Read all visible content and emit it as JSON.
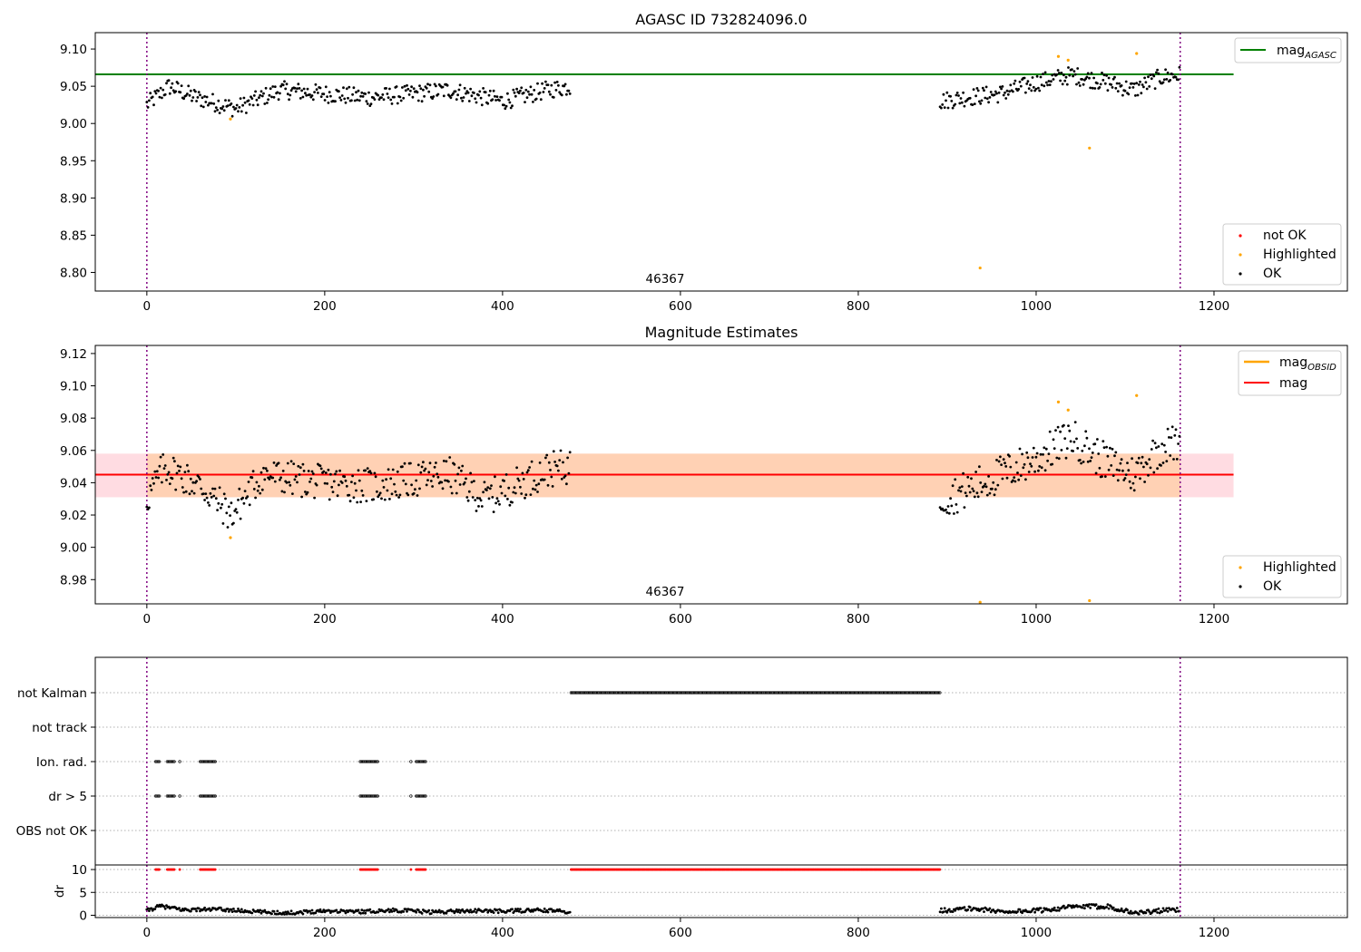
{
  "chart_data": [
    {
      "type": "scatter",
      "title": "AGASC ID 732824096.0",
      "annotation": "46367",
      "xlim": [
        -58,
        1350
      ],
      "ylim": [
        8.775,
        9.122
      ],
      "xticks": [
        0,
        200,
        400,
        600,
        800,
        1000,
        1200
      ],
      "xtick_labels": [
        "0",
        "200",
        "400",
        "600",
        "800",
        "1000",
        "1200"
      ],
      "yticks": [
        8.8,
        8.85,
        8.9,
        8.95,
        9.0,
        9.05,
        9.1
      ],
      "ytick_labels": [
        "8.80",
        "8.85",
        "8.90",
        "8.95",
        "9.00",
        "9.05",
        "9.10"
      ],
      "vertical_lines": [
        0,
        1162
      ],
      "reference_line": {
        "name": "mag",
        "subscript": "AGASC",
        "y": 9.066,
        "x_range": [
          -58,
          1222
        ],
        "color": "#008000"
      },
      "legend_upper": [
        {
          "name": "mag",
          "subscript": "AGASC",
          "color": "#008000",
          "marker": "line"
        }
      ],
      "legend_lower": [
        {
          "name": "not OK",
          "color": "#ff0000",
          "marker": "dot"
        },
        {
          "name": "Highlighted",
          "color": "#ffa500",
          "marker": "dot"
        },
        {
          "name": "OK",
          "color": "#000000",
          "marker": "dot"
        }
      ],
      "series": [
        {
          "name": "OK",
          "color": "#000000",
          "segments": [
            {
              "x_start": 0,
              "x_end": 477,
              "baseline": [
                [
                  0,
                  9.025
                ],
                [
                  25,
                  9.05
                ],
                [
                  55,
                  9.035
                ],
                [
                  100,
                  9.02
                ],
                [
                  150,
                  9.045
                ],
                [
                  200,
                  9.04
                ],
                [
                  250,
                  9.035
                ],
                [
                  300,
                  9.04
                ],
                [
                  340,
                  9.045
                ],
                [
                  400,
                  9.03
                ],
                [
                  450,
                  9.045
                ],
                [
                  477,
                  9.05
                ]
              ],
              "spread": 0.012
            },
            {
              "x_start": 892,
              "x_end": 1162,
              "baseline": [
                [
                  892,
                  9.03
                ],
                [
                  920,
                  9.035
                ],
                [
                  960,
                  9.04
                ],
                [
                  1000,
                  9.055
                ],
                [
                  1040,
                  9.065
                ],
                [
                  1080,
                  9.055
                ],
                [
                  1110,
                  9.045
                ],
                [
                  1140,
                  9.062
                ],
                [
                  1162,
                  9.065
                ]
              ],
              "spread": 0.012
            }
          ]
        },
        {
          "name": "Highlighted",
          "color": "#ffa500",
          "points": [
            [
              94,
              9.006
            ],
            [
              1025,
              9.09
            ],
            [
              1036,
              9.085
            ],
            [
              1060,
              8.967
            ],
            [
              1113,
              9.094
            ],
            [
              937,
              8.806
            ]
          ]
        }
      ]
    },
    {
      "type": "scatter",
      "title": "Magnitude Estimates",
      "annotation": "46367",
      "xlim": [
        -58,
        1350
      ],
      "ylim": [
        8.965,
        9.125
      ],
      "xticks": [
        0,
        200,
        400,
        600,
        800,
        1000,
        1200
      ],
      "xtick_labels": [
        "0",
        "200",
        "400",
        "600",
        "800",
        "1000",
        "1200"
      ],
      "yticks": [
        8.98,
        9.0,
        9.02,
        9.04,
        9.06,
        9.08,
        9.1,
        9.12
      ],
      "ytick_labels": [
        "8.98",
        "9.00",
        "9.02",
        "9.04",
        "9.06",
        "9.08",
        "9.10",
        "9.12"
      ],
      "vertical_lines": [
        0,
        1162
      ],
      "mag_line": {
        "name": "mag",
        "y": 9.045,
        "band": [
          9.031,
          9.058
        ],
        "x_range": [
          -58,
          1222
        ],
        "color": "#ff0000"
      },
      "obsid_band": {
        "name": "mag",
        "subscript": "OBSID",
        "y": 9.045,
        "band": [
          9.031,
          9.058
        ],
        "x_range": [
          0,
          1162
        ],
        "color": "#ffa500"
      },
      "legend_upper": [
        {
          "name": "mag",
          "subscript": "OBSID",
          "color": "#ffa500",
          "marker": "line"
        },
        {
          "name": "mag",
          "subscript": "",
          "color": "#ff0000",
          "marker": "line"
        }
      ],
      "legend_lower": [
        {
          "name": "Highlighted",
          "color": "#ffa500",
          "marker": "dot"
        },
        {
          "name": "OK",
          "color": "#000000",
          "marker": "dot"
        }
      ],
      "series": [
        {
          "name": "OK",
          "color": "#000000",
          "segments": [
            {
              "x_start": 0,
              "x_end": 477,
              "baseline": [
                [
                  0,
                  9.03
                ],
                [
                  20,
                  9.05
                ],
                [
                  60,
                  9.038
                ],
                [
                  95,
                  9.02
                ],
                [
                  130,
                  9.045
                ],
                [
                  200,
                  9.04
                ],
                [
                  260,
                  9.038
                ],
                [
                  300,
                  9.042
                ],
                [
                  340,
                  9.045
                ],
                [
                  380,
                  9.03
                ],
                [
                  420,
                  9.04
                ],
                [
                  450,
                  9.048
                ],
                [
                  477,
                  9.05
                ]
              ],
              "spread": 0.011
            },
            {
              "x_start": 892,
              "x_end": 1162,
              "baseline": [
                [
                  892,
                  9.03
                ],
                [
                  920,
                  9.035
                ],
                [
                  960,
                  9.045
                ],
                [
                  1000,
                  9.055
                ],
                [
                  1040,
                  9.068
                ],
                [
                  1080,
                  9.052
                ],
                [
                  1110,
                  9.045
                ],
                [
                  1140,
                  9.062
                ],
                [
                  1162,
                  9.065
                ]
              ],
              "spread": 0.012
            }
          ]
        },
        {
          "name": "Highlighted",
          "color": "#ffa500",
          "points": [
            [
              94,
              9.006
            ],
            [
              1025,
              9.09
            ],
            [
              1036,
              9.085
            ],
            [
              1113,
              9.094
            ],
            [
              937,
              8.966
            ],
            [
              1060,
              8.967
            ]
          ]
        }
      ]
    },
    {
      "type": "scatter",
      "title": "",
      "xlim": [
        -58,
        1350
      ],
      "category_axis": {
        "labels": [
          "not Kalman",
          "not track",
          "Ion. rad.",
          "dr > 5",
          "OBS not OK"
        ],
        "flag_rows": [
          {
            "label": "not Kalman",
            "ranges": [
              [
                477,
                892
              ]
            ]
          },
          {
            "label": "not track",
            "ranges": []
          },
          {
            "label": "Ion. rad.",
            "ranges": [
              [
                10,
                15
              ],
              [
                23,
                32
              ],
              [
                37,
                38
              ],
              [
                60,
                78
              ],
              [
                240,
                260
              ],
              [
                297,
                298
              ],
              [
                303,
                314
              ]
            ]
          },
          {
            "label": "dr > 5",
            "ranges": [
              [
                10,
                15
              ],
              [
                23,
                32
              ],
              [
                37,
                38
              ],
              [
                60,
                78
              ],
              [
                240,
                260
              ],
              [
                297,
                298
              ],
              [
                303,
                314
              ]
            ]
          },
          {
            "label": "OBS not OK",
            "ranges": []
          }
        ]
      },
      "dr_axis": {
        "ylabel": "dr",
        "ylim": [
          -0.5,
          11
        ],
        "yticks": [
          0,
          5,
          10
        ],
        "ytick_labels": [
          "0",
          "5",
          "10"
        ],
        "clipped_value": 10,
        "clipped_ranges": [
          [
            10,
            15
          ],
          [
            23,
            32
          ],
          [
            37,
            38
          ],
          [
            60,
            78
          ],
          [
            240,
            260
          ],
          [
            297,
            298
          ],
          [
            303,
            314
          ],
          [
            477,
            892
          ]
        ],
        "segments": [
          {
            "x_start": 0,
            "x_end": 477,
            "baseline": [
              [
                0,
                1.0
              ],
              [
                15,
                2.0
              ],
              [
                40,
                1.2
              ],
              [
                80,
                1.3
              ],
              [
                120,
                0.8
              ],
              [
                160,
                0.5
              ],
              [
                200,
                1.0
              ],
              [
                240,
                0.8
              ],
              [
                280,
                1.1
              ],
              [
                320,
                0.7
              ],
              [
                360,
                1.0
              ],
              [
                400,
                0.9
              ],
              [
                440,
                1.1
              ],
              [
                477,
                0.8
              ]
            ],
            "spread": 0.4
          },
          {
            "x_start": 892,
            "x_end": 1162,
            "baseline": [
              [
                892,
                1.0
              ],
              [
                930,
                1.5
              ],
              [
                960,
                0.8
              ],
              [
                1000,
                1.0
              ],
              [
                1040,
                1.8
              ],
              [
                1080,
                2.0
              ],
              [
                1110,
                0.5
              ],
              [
                1140,
                1.0
              ],
              [
                1162,
                1.2
              ]
            ],
            "spread": 0.5
          }
        ]
      },
      "xticks": [
        0,
        200,
        400,
        600,
        800,
        1000,
        1200
      ],
      "xtick_labels": [
        "0",
        "200",
        "400",
        "600",
        "800",
        "1000",
        "1200"
      ],
      "vertical_lines": [
        0,
        1162
      ]
    }
  ]
}
